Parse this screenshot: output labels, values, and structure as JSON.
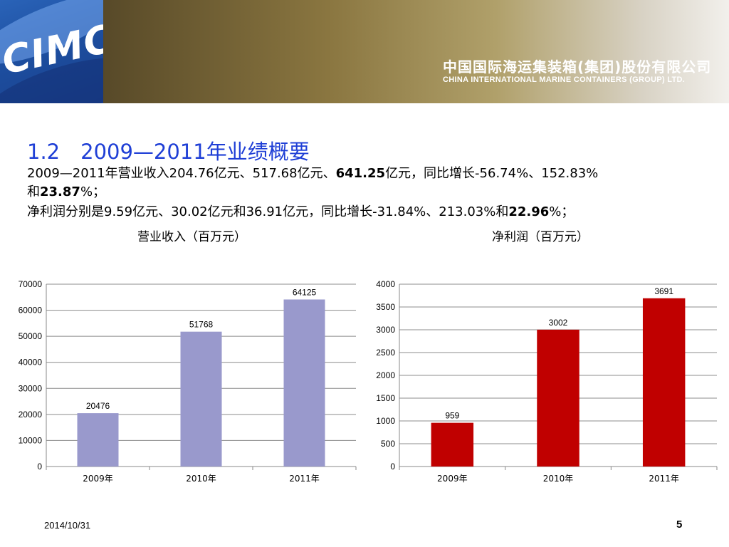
{
  "header": {
    "logo_text": "CIMC",
    "company_cn": "中国国际海运集装箱(集团)股份有限公司",
    "company_en": "CHINA INTERNATIONAL MARINE CONTAINERS (GROUP) LTD."
  },
  "title": "1.2　2009—2011年业绩概要",
  "paragraph1": {
    "a": "2009—2011年营业收入204.76亿元、517.68亿元、",
    "b": "641.25",
    "c": "亿元，同比增长-56.74%、152.83%"
  },
  "paragraph2": {
    "a": "和",
    "b": "23.87",
    "c": "%；"
  },
  "paragraph3": {
    "a": "净利润分别是9.59亿元、30.02亿元和36.91亿元，同比增长-31.84%、213.03%和",
    "b": "22.96",
    "c": "%；"
  },
  "captions": {
    "revenue": "营业收入（百万元）",
    "profit": "净利润（百万元）"
  },
  "colors": {
    "revenue_bar": "#9999cc",
    "profit_bar": "#c00000",
    "title": "#1f3fd6"
  },
  "chart_data": [
    {
      "type": "bar",
      "title": "营业收入（百万元）",
      "categories": [
        "2009年",
        "2010年",
        "2011年"
      ],
      "values": [
        20476,
        51768,
        64125
      ],
      "ylim": [
        0,
        70000
      ],
      "yticks": [
        0,
        10000,
        20000,
        30000,
        40000,
        50000,
        60000,
        70000
      ],
      "grid": true,
      "legend": "none",
      "data_labels": [
        "20476",
        "51768",
        "64125"
      ]
    },
    {
      "type": "bar",
      "title": "净利润（百万元）",
      "categories": [
        "2009年",
        "2010年",
        "2011年"
      ],
      "values": [
        959,
        3002,
        3691
      ],
      "ylim": [
        0,
        4000
      ],
      "yticks": [
        0,
        500,
        1000,
        1500,
        2000,
        2500,
        3000,
        3500,
        4000
      ],
      "grid": true,
      "legend": "none",
      "data_labels": [
        "959",
        "3002",
        "3691"
      ]
    }
  ],
  "footer": {
    "date": "2014/10/31",
    "page": "5"
  }
}
